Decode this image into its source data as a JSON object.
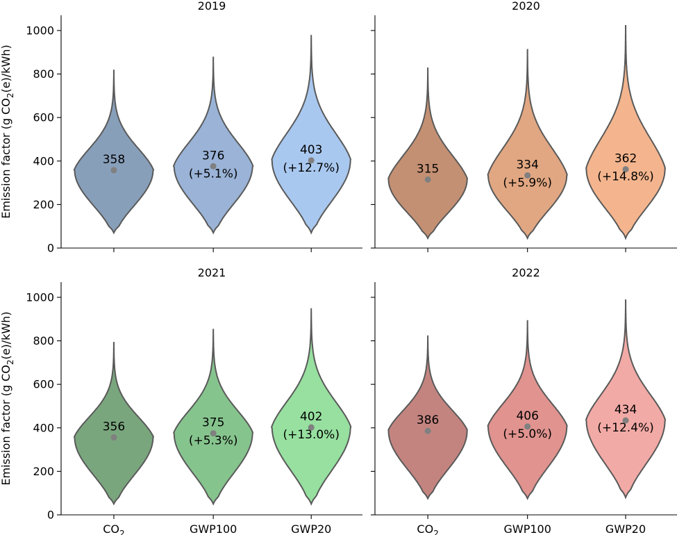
{
  "chart_data": {
    "type": "violin",
    "ylabel": "Emission factor (g CO2(e)/kWh)",
    "ylim": [
      0,
      1070
    ],
    "yticks": [
      0,
      200,
      400,
      600,
      800,
      1000
    ],
    "categories": [
      "CO2",
      "GWP100",
      "GWP20"
    ],
    "category_labels": [
      {
        "base": "CO",
        "sub": "2"
      },
      {
        "base": "GWP100",
        "sub": ""
      },
      {
        "base": "GWP20",
        "sub": ""
      }
    ],
    "ylabel_parts": {
      "pre": "Emission factor (g CO",
      "sub": "2",
      "post": "(e)/kWh)"
    },
    "panels": [
      {
        "title": "2019",
        "colors": [
          "#889fba",
          "#9ab3d7",
          "#a9c8ef"
        ],
        "violins": [
          {
            "category": "CO2",
            "mean": 358,
            "label": "358",
            "change": "",
            "min": 70,
            "max": 820
          },
          {
            "category": "GWP100",
            "mean": 376,
            "label": "376",
            "change": "(+5.1%)",
            "min": 70,
            "max": 880
          },
          {
            "category": "GWP20",
            "mean": 403,
            "label": "403",
            "change": "(+12.7%)",
            "min": 70,
            "max": 980
          }
        ]
      },
      {
        "title": "2020",
        "colors": [
          "#c49073",
          "#e1a782",
          "#f4b58e"
        ],
        "violins": [
          {
            "category": "CO2",
            "mean": 315,
            "label": "315",
            "change": "",
            "min": 45,
            "max": 830
          },
          {
            "category": "GWP100",
            "mean": 334,
            "label": "334",
            "change": "(+5.9%)",
            "min": 45,
            "max": 915
          },
          {
            "category": "GWP20",
            "mean": 362,
            "label": "362",
            "change": "(+14.8%)",
            "min": 45,
            "max": 1025
          }
        ]
      },
      {
        "title": "2021",
        "colors": [
          "#7aa67e",
          "#86c48e",
          "#97e0a0"
        ],
        "violins": [
          {
            "category": "CO2",
            "mean": 356,
            "label": "356",
            "change": "",
            "min": 50,
            "max": 795
          },
          {
            "category": "GWP100",
            "mean": 375,
            "label": "375",
            "change": "(+5.3%)",
            "min": 50,
            "max": 855
          },
          {
            "category": "GWP20",
            "mean": 402,
            "label": "402",
            "change": "(+13.0%)",
            "min": 50,
            "max": 950
          }
        ]
      },
      {
        "title": "2022",
        "colors": [
          "#c38480",
          "#e0938f",
          "#f2aaa6"
        ],
        "violins": [
          {
            "category": "CO2",
            "mean": 386,
            "label": "386",
            "change": "",
            "min": 75,
            "max": 825
          },
          {
            "category": "GWP100",
            "mean": 406,
            "label": "406",
            "change": "(+5.0%)",
            "min": 75,
            "max": 895
          },
          {
            "category": "GWP20",
            "mean": 434,
            "label": "434",
            "change": "(+12.4%)",
            "min": 80,
            "max": 990
          }
        ]
      }
    ],
    "grid": false,
    "legend": "none"
  }
}
